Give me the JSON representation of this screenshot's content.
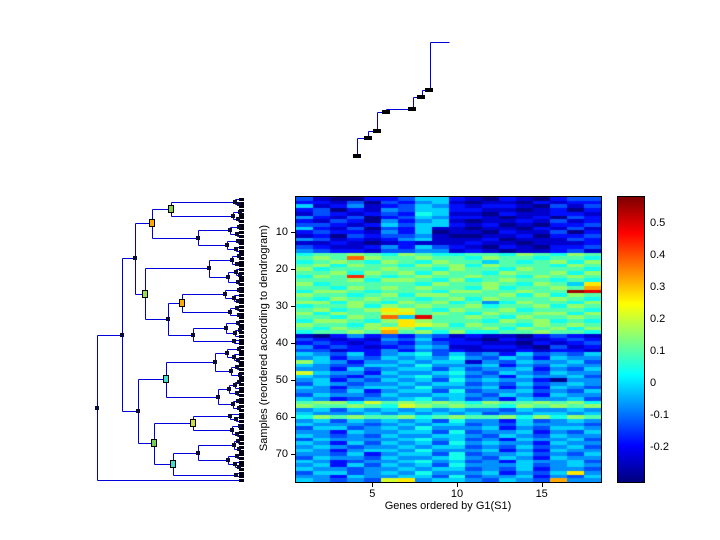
{
  "figure": {
    "background": "#ffffff"
  },
  "chart_data": {
    "type": "heatmap",
    "title": "",
    "xlabel": "Genes ordered by G1(S1)",
    "ylabel": "Samples (reordered according to dendrogram)",
    "colormap": "jet",
    "grid": false,
    "n_rows": 77,
    "n_cols": 18,
    "x_ticks": [
      5,
      10,
      15
    ],
    "y_ticks": [
      10,
      20,
      30,
      40,
      50,
      60,
      70
    ],
    "scale": {
      "vmin": -0.31,
      "vmax": 0.58
    },
    "value_encoding": {
      "digits": "0123456789abcdef",
      "min": -0.3,
      "step": 0.056667
    },
    "rows_hex": [
      "310022355210210233",
      "221303245101102122",
      "512412354212210313",
      "230214355221101202",
      "132123265110211221",
      "421302354221012032",
      "213204245101121312",
      "332125355212010223",
      "521303251101102131",
      "232214250110211302",
      "120323341001120223",
      "431212451112011132",
      "112101211121101112",
      "321124253210210223",
      "432213344121011231",
      "677876876677687687",
      "787c87787768776776",
      "678768768775767868",
      "786877687868777687",
      "867778776877687776",
      "778687868776877868",
      "687d76787787768787",
      "777868876867877676",
      "86777776877876875a",
      "77687878776867787b",
      "6887677768877877fe",
      "877678688777868687",
      "768787767868777876",
      "886876878674687768",
      "677868787786778687",
      "78678a976877867776",
      "868779a78768778868",
      "77687c5e7787687787",
      "688768a87776878676",
      "877687a98687768787",
      "76878a867778687868",
      "67787b786866778776",
      "102423243121102321",
      "321214352210211232",
      "232123243221102123",
      "423212354112210312",
      "331224243211121221",
      "543524563534253435",
      "452435454643542544",
      "854244545514354453",
      "543355464445243544",
      "442534553534452435",
      "954425445643543544",
      "543244564534254453",
      "452435453645442044",
      "354344545534353454",
      "542455464445242543",
      "443524553634453435",
      "354435445543542544",
      "542344564534254453",
      "788697878768778786",
      "877876987877687878",
      "453545454544354454",
      "544454545453445545",
      "687877867877868687",
      "453545453644253454",
      "544434545534354443",
      "355345464445243554",
      "442544553634452435",
      "543435445543543544",
      "354444564534254453",
      "542535453645442544",
      "454344545534353453",
      "542455464445242544",
      "443524553634453435",
      "354435445643542544",
      "542344564534254453",
      "452535453644453454",
      "544344545534352443",
      "3553454644452435a4",
      "442544553634452435",
      "543439a45543543b44"
    ],
    "colorbar": {
      "tick_labels": [
        "0.5",
        "0.4",
        "0.3",
        "0.2",
        "0.1",
        "0",
        "-0.1",
        "-0.2"
      ],
      "tick_values": [
        0.5,
        0.4,
        0.3,
        0.2,
        0.1,
        0,
        -0.1,
        -0.2
      ]
    },
    "dendrograms": {
      "line_color": "#0000dd",
      "node_marker_color": "#0d0d33",
      "leaf_marker_color": "#000011",
      "top": {
        "orientation": "columns",
        "segments": [
          [
            357,
            157,
            357,
            138
          ],
          [
            357,
            138,
            368,
            138
          ],
          [
            368,
            138,
            368,
            131
          ],
          [
            368,
            131,
            377,
            131
          ],
          [
            377,
            131,
            377,
            112
          ],
          [
            377,
            112,
            386,
            112
          ],
          [
            386,
            112,
            386,
            109
          ],
          [
            386,
            109,
            413,
            109
          ],
          [
            413,
            109,
            413,
            97
          ],
          [
            413,
            97,
            422,
            97
          ],
          [
            422,
            97,
            422,
            90
          ],
          [
            422,
            90,
            430,
            90
          ],
          [
            430,
            90,
            430,
            42
          ],
          [
            430,
            42,
            449,
            42
          ]
        ],
        "marks": [
          [
            357,
            156
          ],
          [
            368,
            138
          ],
          [
            377,
            131
          ],
          [
            386,
            112
          ],
          [
            412,
            109
          ],
          [
            421,
            97
          ],
          [
            429,
            90
          ]
        ]
      },
      "left": {
        "orientation": "rows",
        "n_leaves": 77,
        "tree": [
          [
            [
              [
                [
                  [
                    0,
                    [
                      1,
                      2,
                      4
                    ],
                    8
                  ],
                  [
                    [
                      3,
                      4,
                      3
                    ],
                    [
                      5,
                      6,
                      5
                    ],
                    10
                  ],
                  72,
                  "#88cc44"
                ],
                [
                  [
                    [
                      7,
                      8,
                      4
                    ],
                    [
                      9,
                      10,
                      6
                    ],
                    13
                  ],
                  [
                    [
                      11,
                      12,
                      5
                    ],
                    [
                      13,
                      14,
                      7
                    ],
                    16
                  ],
                  45
                ],
                91,
                "#ffaa00"
              ],
              [
                [
                  [
                    [
                      15,
                      16,
                      4
                    ],
                    [
                      17,
                      18,
                      6
                    ],
                    11
                  ],
                  [
                    [
                      19,
                      [
                        20,
                        21,
                        3
                      ],
                      7
                    ],
                    [
                      22,
                      23,
                      5
                    ],
                    15
                  ],
                  34
                ],
                [
                  [
                    [
                      [
                        24,
                        25,
                        4
                      ],
                      [
                        26,
                        [
                          27,
                          28,
                          5
                        ],
                        9
                      ],
                      18
                    ],
                    [
                      [
                        29,
                        30,
                        6
                      ],
                      [
                        31,
                        32,
                        4
                      ],
                      13
                    ],
                    61,
                    "#ffaa00"
                  ],
                  [
                    [
                      [
                        33,
                        34,
                        5
                      ],
                      [
                        [
                          35,
                          36,
                          3
                        ],
                        37,
                        8
                      ],
                      17
                    ],
                    [
                      38,
                      39,
                      9
                    ],
                    50
                  ],
                  75
                ],
                98,
                "#99dd55"
              ],
              108
            ],
            [
              [
                [
                  [
                    [
                      40,
                      41,
                      4
                    ],
                    [
                      42,
                      [
                        43,
                        44,
                        5
                      ],
                      9
                    ],
                    16
                  ],
                  [
                    [
                      45,
                      46,
                      6
                    ],
                    [
                      47,
                      48,
                      3
                    ],
                    12
                  ],
                  28
                ],
                [
                  [
                    [
                      [
                        49,
                        50,
                        4
                      ],
                      51,
                      8
                    ],
                    [
                      52,
                      53,
                      6
                    ],
                    14
                  ],
                  [
                    [
                      54,
                      55,
                      5
                    ],
                    [
                      56,
                      57,
                      4
                    ],
                    10
                  ],
                  25
                ],
                77,
                "#44ddcc"
              ],
              [
                [
                  [
                    58,
                    [
                      59,
                      60,
                      7
                    ],
                    13
                  ],
                  [
                    [
                      61,
                      62,
                      3
                    ],
                    [
                      63,
                      64,
                      6
                    ],
                    11
                  ],
                  50,
                  "#ccdd44"
                ],
                [
                  [
                    [
                      [
                        65,
                        66,
                        5
                      ],
                      [
                        67,
                        68,
                        4
                      ],
                      9
                    ],
                    [
                      [
                        69,
                        70,
                        6
                      ],
                      [
                        71,
                        [
                          72,
                          73,
                          4
                        ],
                        8
                      ],
                      15
                    ],
                    45
                  ],
                  [
                    74,
                    75,
                    7
                  ],
                  70,
                  "#44ddcc"
                ],
                89,
                "#77cc55"
              ],
              105
            ],
            121
          ],
          76,
          146
        ]
      }
    }
  }
}
